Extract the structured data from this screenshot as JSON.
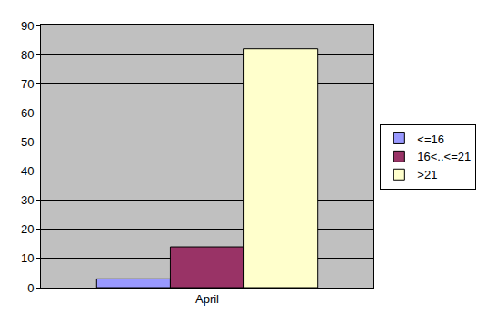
{
  "chart_data": {
    "type": "bar",
    "categories": [
      "April"
    ],
    "series": [
      {
        "name": "<=16",
        "color": "#9999ff",
        "values": [
          3
        ]
      },
      {
        "name": "16<..<=21",
        "color": "#993366",
        "values": [
          14
        ]
      },
      {
        "name": ">21",
        "color": "#ffffcc",
        "values": [
          82
        ]
      }
    ],
    "ylim": [
      0,
      90
    ],
    "yticks": [
      0,
      10,
      20,
      30,
      40,
      50,
      60,
      70,
      80,
      90
    ],
    "grid": true,
    "legend": "right"
  }
}
